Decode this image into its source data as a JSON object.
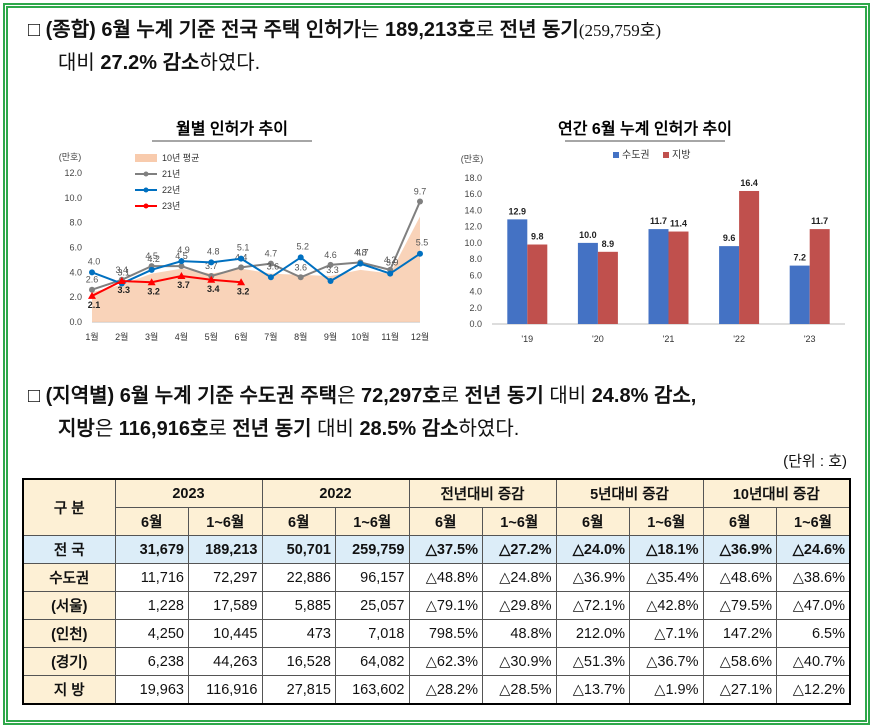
{
  "intro": {
    "lines": [
      [
        {
          "text": "□ ",
          "bold": false
        },
        {
          "text": "(종합) 6월 누계 기준 전국 주택 인허가",
          "bold": true
        },
        {
          "text": "는 ",
          "bold": false
        },
        {
          "text": "189,213호",
          "bold": true
        },
        {
          "text": "로 ",
          "bold": false
        },
        {
          "text": "전년 동기",
          "bold": true
        },
        {
          "text": "(259,759호)",
          "bold": false,
          "small": true
        }
      ],
      [
        {
          "text": "대비 ",
          "bold": false
        },
        {
          "text": "27.2% 감소",
          "bold": true
        },
        {
          "text": "하였다.",
          "bold": false
        }
      ]
    ]
  },
  "chart_data": [
    {
      "type": "line",
      "title": "월별 인허가 추이",
      "y_unit": "(만호)",
      "categories": [
        "1월",
        "2월",
        "3월",
        "4월",
        "5월",
        "6월",
        "7월",
        "8월",
        "9월",
        "10월",
        "11월",
        "12월"
      ],
      "ylim": [
        0,
        12
      ],
      "yticks": [
        {
          "value": 0,
          "label": "0.0"
        },
        {
          "value": 2,
          "label": "2.0"
        },
        {
          "value": 4,
          "label": "4.0"
        },
        {
          "value": 6,
          "label": "6.0"
        },
        {
          "value": 8,
          "label": "8.0"
        },
        {
          "value": 10,
          "label": "10.0"
        },
        {
          "value": 12,
          "label": "12.0"
        }
      ],
      "grid": false,
      "series": [
        {
          "name": "10년 평균",
          "color": "#f8cbad",
          "style": "area",
          "values": [
            2.4,
            3.0,
            3.9,
            4.3,
            3.9,
            4.3,
            3.9,
            3.8,
            3.7,
            4.2,
            3.9,
            8.5
          ]
        },
        {
          "name": "21년",
          "color": "#808080",
          "values": [
            2.6,
            3.4,
            4.5,
            4.5,
            3.7,
            4.4,
            4.7,
            3.6,
            4.6,
            4.8,
            4.2,
            9.7
          ],
          "value_labels": [
            "2.6",
            "3.4",
            "4.5",
            "4.5",
            "3.7",
            "4.4",
            "4.7",
            "3.6",
            "4.6",
            "4.8",
            "4.2",
            "9.7"
          ]
        },
        {
          "name": "22년",
          "color": "#0070c0",
          "values": [
            4.0,
            3.1,
            4.2,
            4.9,
            4.8,
            5.1,
            3.6,
            5.2,
            3.3,
            4.7,
            3.9,
            5.5
          ],
          "value_labels": [
            "4.0",
            "3.1",
            "4.2",
            "4.9",
            "4.8",
            "5.1",
            "3.6",
            "5.2",
            "3.3",
            "4.7",
            "3.9",
            "5.5"
          ]
        },
        {
          "name": "23년",
          "color": "#ff0000",
          "values": [
            2.1,
            3.3,
            3.2,
            3.7,
            3.4,
            3.2,
            null,
            null,
            null,
            null,
            null,
            null
          ],
          "value_labels": [
            "2.1",
            "3.3",
            "3.2",
            "3.7",
            "3.4",
            "3.2",
            null,
            null,
            null,
            null,
            null,
            null
          ]
        }
      ]
    },
    {
      "type": "bar",
      "title": "연간 6월 누계 인허가 추이",
      "y_unit": "(만호)",
      "categories": [
        "'19",
        "'20",
        "'21",
        "'22",
        "'23"
      ],
      "ylim": [
        0,
        18
      ],
      "yticks": [
        {
          "value": 0,
          "label": "0.0"
        },
        {
          "value": 2,
          "label": "2.0"
        },
        {
          "value": 4,
          "label": "4.0"
        },
        {
          "value": 6,
          "label": "6.0"
        },
        {
          "value": 8,
          "label": "8.0"
        },
        {
          "value": 10,
          "label": "10.0"
        },
        {
          "value": 12,
          "label": "12.0"
        },
        {
          "value": 14,
          "label": "14.0"
        },
        {
          "value": 16,
          "label": "16.0"
        },
        {
          "value": 18,
          "label": "18.0"
        }
      ],
      "grid": false,
      "series": [
        {
          "name": "수도권",
          "color": "#4472c4",
          "values": [
            12.9,
            10.0,
            11.7,
            9.6,
            7.2
          ],
          "value_labels": [
            "12.9",
            "10.0",
            "11.7",
            "9.6",
            "7.2"
          ]
        },
        {
          "name": "지방",
          "color": "#c0504d",
          "values": [
            9.8,
            8.9,
            11.4,
            16.4,
            11.7
          ],
          "value_labels": [
            "9.8",
            "8.9",
            "11.4",
            "16.4",
            "11.7"
          ]
        }
      ]
    }
  ],
  "regional": {
    "lines": [
      [
        {
          "text": "□ ",
          "bold": false
        },
        {
          "text": "(지역별) 6월 누계 기준 수도권 주택",
          "bold": true
        },
        {
          "text": "은 ",
          "bold": false
        },
        {
          "text": "72,297호",
          "bold": true
        },
        {
          "text": "로 ",
          "bold": false
        },
        {
          "text": "전년 동기",
          "bold": true
        },
        {
          "text": " 대비 ",
          "bold": false
        },
        {
          "text": "24.8% 감소,",
          "bold": true
        }
      ],
      [
        {
          "text": "지방",
          "bold": true
        },
        {
          "text": "은 ",
          "bold": false
        },
        {
          "text": "116,916호",
          "bold": true
        },
        {
          "text": "로 ",
          "bold": false
        },
        {
          "text": "전년 동기",
          "bold": true
        },
        {
          "text": " 대비 ",
          "bold": false
        },
        {
          "text": "28.5% 감소",
          "bold": true
        },
        {
          "text": "하였다.",
          "bold": false
        }
      ]
    ]
  },
  "unit": "(단위 : 호)",
  "table": {
    "header": [
      "구 분",
      "2023",
      "2022",
      "전년대비 증감",
      "5년대비 증감",
      "10년대비 증감"
    ],
    "subheader": [
      "6월",
      "1~6월",
      "6월",
      "1~6월",
      "6월",
      "1~6월",
      "6월",
      "1~6월",
      "6월",
      "1~6월"
    ],
    "rows": [
      [
        "전 국",
        "31,679",
        "189,213",
        "50,701",
        "259,759",
        "△37.5%",
        "△27.2%",
        "△24.0%",
        "△18.1%",
        "△36.9%",
        "△24.6%"
      ],
      [
        "수도권",
        "11,716",
        "72,297",
        "22,886",
        "96,157",
        "△48.8%",
        "△24.8%",
        "△36.9%",
        "△35.4%",
        "△48.6%",
        "△38.6%"
      ],
      [
        "(서울)",
        "1,228",
        "17,589",
        "5,885",
        "25,057",
        "△79.1%",
        "△29.8%",
        "△72.1%",
        "△42.8%",
        "△79.5%",
        "△47.0%"
      ],
      [
        "(인천)",
        "4,250",
        "10,445",
        "473",
        "7,018",
        "798.5%",
        "48.8%",
        "212.0%",
        "△7.1%",
        "147.2%",
        "6.5%"
      ],
      [
        "(경기)",
        "6,238",
        "44,263",
        "16,528",
        "64,082",
        "△62.3%",
        "△30.9%",
        "△51.3%",
        "△36.7%",
        "△58.6%",
        "△40.7%"
      ],
      [
        "지 방",
        "19,963",
        "116,916",
        "27,815",
        "163,602",
        "△28.2%",
        "△28.5%",
        "△13.7%",
        "△1.9%",
        "△27.1%",
        "△12.2%"
      ]
    ]
  }
}
